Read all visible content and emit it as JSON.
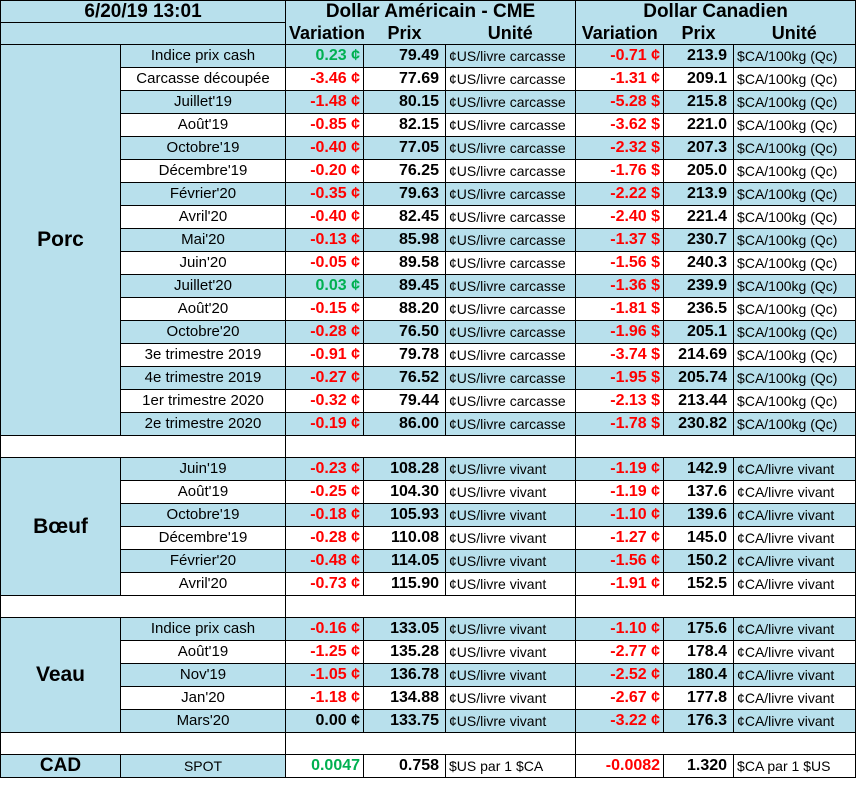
{
  "header": {
    "timestamp": "6/20/19 13:01",
    "usd_title": "Dollar Américain - CME",
    "cad_title": "Dollar Canadien",
    "col_variation": "Variation",
    "col_prix": "Prix",
    "col_unite": "Unité"
  },
  "sections": [
    {
      "category": "Porc",
      "rows": [
        {
          "label": "Indice prix cash",
          "usd_var": "0.23 ¢",
          "usd_var_sign": "pos",
          "usd_price": "79.49",
          "usd_unit": "¢US/livre carcasse",
          "cad_var": "-0.71 ¢",
          "cad_var_sign": "neg",
          "cad_price": "213.9",
          "cad_unit": "$CA/100kg (Qc)"
        },
        {
          "label": "Carcasse découpée",
          "usd_var": "-3.46 ¢",
          "usd_var_sign": "neg",
          "usd_price": "77.69",
          "usd_unit": "¢US/livre carcasse",
          "cad_var": "-1.31 ¢",
          "cad_var_sign": "neg",
          "cad_price": "209.1",
          "cad_unit": "$CA/100kg (Qc)"
        },
        {
          "label": "Juillet'19",
          "usd_var": "-1.48 ¢",
          "usd_var_sign": "neg",
          "usd_price": "80.15",
          "usd_unit": "¢US/livre carcasse",
          "cad_var": "-5.28 $",
          "cad_var_sign": "neg",
          "cad_price": "215.8",
          "cad_unit": "$CA/100kg (Qc)"
        },
        {
          "label": "Août'19",
          "usd_var": "-0.85 ¢",
          "usd_var_sign": "neg",
          "usd_price": "82.15",
          "usd_unit": "¢US/livre carcasse",
          "cad_var": "-3.62 $",
          "cad_var_sign": "neg",
          "cad_price": "221.0",
          "cad_unit": "$CA/100kg (Qc)"
        },
        {
          "label": "Octobre'19",
          "usd_var": "-0.40 ¢",
          "usd_var_sign": "neg",
          "usd_price": "77.05",
          "usd_unit": "¢US/livre carcasse",
          "cad_var": "-2.32 $",
          "cad_var_sign": "neg",
          "cad_price": "207.3",
          "cad_unit": "$CA/100kg (Qc)"
        },
        {
          "label": "Décembre'19",
          "usd_var": "-0.20 ¢",
          "usd_var_sign": "neg",
          "usd_price": "76.25",
          "usd_unit": "¢US/livre carcasse",
          "cad_var": "-1.76 $",
          "cad_var_sign": "neg",
          "cad_price": "205.0",
          "cad_unit": "$CA/100kg (Qc)"
        },
        {
          "label": "Février'20",
          "usd_var": "-0.35 ¢",
          "usd_var_sign": "neg",
          "usd_price": "79.63",
          "usd_unit": "¢US/livre carcasse",
          "cad_var": "-2.22 $",
          "cad_var_sign": "neg",
          "cad_price": "213.9",
          "cad_unit": "$CA/100kg (Qc)"
        },
        {
          "label": "Avril'20",
          "usd_var": "-0.40 ¢",
          "usd_var_sign": "neg",
          "usd_price": "82.45",
          "usd_unit": "¢US/livre carcasse",
          "cad_var": "-2.40 $",
          "cad_var_sign": "neg",
          "cad_price": "221.4",
          "cad_unit": "$CA/100kg (Qc)"
        },
        {
          "label": "Mai'20",
          "usd_var": "-0.13 ¢",
          "usd_var_sign": "neg",
          "usd_price": "85.98",
          "usd_unit": "¢US/livre carcasse",
          "cad_var": "-1.37 $",
          "cad_var_sign": "neg",
          "cad_price": "230.7",
          "cad_unit": "$CA/100kg (Qc)"
        },
        {
          "label": "Juin'20",
          "usd_var": "-0.05 ¢",
          "usd_var_sign": "neg",
          "usd_price": "89.58",
          "usd_unit": "¢US/livre carcasse",
          "cad_var": "-1.56 $",
          "cad_var_sign": "neg",
          "cad_price": "240.3",
          "cad_unit": "$CA/100kg (Qc)"
        },
        {
          "label": "Juillet'20",
          "usd_var": "0.03 ¢",
          "usd_var_sign": "pos",
          "usd_price": "89.45",
          "usd_unit": "¢US/livre carcasse",
          "cad_var": "-1.36 $",
          "cad_var_sign": "neg",
          "cad_price": "239.9",
          "cad_unit": "$CA/100kg (Qc)"
        },
        {
          "label": "Août'20",
          "usd_var": "-0.15 ¢",
          "usd_var_sign": "neg",
          "usd_price": "88.20",
          "usd_unit": "¢US/livre carcasse",
          "cad_var": "-1.81 $",
          "cad_var_sign": "neg",
          "cad_price": "236.5",
          "cad_unit": "$CA/100kg (Qc)"
        },
        {
          "label": "Octobre'20",
          "usd_var": "-0.28 ¢",
          "usd_var_sign": "neg",
          "usd_price": "76.50",
          "usd_unit": "¢US/livre carcasse",
          "cad_var": "-1.96 $",
          "cad_var_sign": "neg",
          "cad_price": "205.1",
          "cad_unit": "$CA/100kg (Qc)"
        },
        {
          "label": "3e trimestre 2019",
          "usd_var": "-0.91 ¢",
          "usd_var_sign": "neg",
          "usd_price": "79.78",
          "usd_unit": "¢US/livre carcasse",
          "cad_var": "-3.74 $",
          "cad_var_sign": "neg",
          "cad_price": "214.69",
          "cad_unit": "$CA/100kg (Qc)"
        },
        {
          "label": "4e trimestre 2019",
          "usd_var": "-0.27 ¢",
          "usd_var_sign": "neg",
          "usd_price": "76.52",
          "usd_unit": "¢US/livre carcasse",
          "cad_var": "-1.95 $",
          "cad_var_sign": "neg",
          "cad_price": "205.74",
          "cad_unit": "$CA/100kg (Qc)"
        },
        {
          "label": "1er trimestre 2020",
          "usd_var": "-0.32 ¢",
          "usd_var_sign": "neg",
          "usd_price": "79.44",
          "usd_unit": "¢US/livre carcasse",
          "cad_var": "-2.13 $",
          "cad_var_sign": "neg",
          "cad_price": "213.44",
          "cad_unit": "$CA/100kg (Qc)"
        },
        {
          "label": "2e trimestre 2020",
          "usd_var": "-0.19 ¢",
          "usd_var_sign": "neg",
          "usd_price": "86.00",
          "usd_unit": "¢US/livre carcasse",
          "cad_var": "-1.78 $",
          "cad_var_sign": "neg",
          "cad_price": "230.82",
          "cad_unit": "$CA/100kg (Qc)"
        }
      ]
    },
    {
      "category": "Bœuf",
      "rows": [
        {
          "label": "Juin'19",
          "usd_var": "-0.23 ¢",
          "usd_var_sign": "neg",
          "usd_price": "108.28",
          "usd_unit": "¢US/livre vivant",
          "cad_var": "-1.19 ¢",
          "cad_var_sign": "neg",
          "cad_price": "142.9",
          "cad_unit": "¢CA/livre vivant"
        },
        {
          "label": "Août'19",
          "usd_var": "-0.25 ¢",
          "usd_var_sign": "neg",
          "usd_price": "104.30",
          "usd_unit": "¢US/livre vivant",
          "cad_var": "-1.19 ¢",
          "cad_var_sign": "neg",
          "cad_price": "137.6",
          "cad_unit": "¢CA/livre vivant"
        },
        {
          "label": "Octobre'19",
          "usd_var": "-0.18 ¢",
          "usd_var_sign": "neg",
          "usd_price": "105.93",
          "usd_unit": "¢US/livre vivant",
          "cad_var": "-1.10 ¢",
          "cad_var_sign": "neg",
          "cad_price": "139.6",
          "cad_unit": "¢CA/livre vivant"
        },
        {
          "label": "Décembre'19",
          "usd_var": "-0.28 ¢",
          "usd_var_sign": "neg",
          "usd_price": "110.08",
          "usd_unit": "¢US/livre vivant",
          "cad_var": "-1.27 ¢",
          "cad_var_sign": "neg",
          "cad_price": "145.0",
          "cad_unit": "¢CA/livre vivant"
        },
        {
          "label": "Février'20",
          "usd_var": "-0.48 ¢",
          "usd_var_sign": "neg",
          "usd_price": "114.05",
          "usd_unit": "¢US/livre vivant",
          "cad_var": "-1.56 ¢",
          "cad_var_sign": "neg",
          "cad_price": "150.2",
          "cad_unit": "¢CA/livre vivant"
        },
        {
          "label": "Avril'20",
          "usd_var": "-0.73 ¢",
          "usd_var_sign": "neg",
          "usd_price": "115.90",
          "usd_unit": "¢US/livre vivant",
          "cad_var": "-1.91 ¢",
          "cad_var_sign": "neg",
          "cad_price": "152.5",
          "cad_unit": "¢CA/livre vivant"
        }
      ]
    },
    {
      "category": "Veau",
      "rows": [
        {
          "label": "Indice prix cash",
          "usd_var": "-0.16 ¢",
          "usd_var_sign": "neg",
          "usd_price": "133.05",
          "usd_unit": "¢US/livre vivant",
          "cad_var": "-1.10 ¢",
          "cad_var_sign": "neg",
          "cad_price": "175.6",
          "cad_unit": "¢CA/livre vivant"
        },
        {
          "label": "Août'19",
          "usd_var": "-1.25 ¢",
          "usd_var_sign": "neg",
          "usd_price": "135.28",
          "usd_unit": "¢US/livre vivant",
          "cad_var": "-2.77 ¢",
          "cad_var_sign": "neg",
          "cad_price": "178.4",
          "cad_unit": "¢CA/livre vivant"
        },
        {
          "label": "Nov'19",
          "usd_var": "-1.05 ¢",
          "usd_var_sign": "neg",
          "usd_price": "136.78",
          "usd_unit": "¢US/livre vivant",
          "cad_var": "-2.52 ¢",
          "cad_var_sign": "neg",
          "cad_price": "180.4",
          "cad_unit": "¢CA/livre vivant"
        },
        {
          "label": "Jan'20",
          "usd_var": "-1.18 ¢",
          "usd_var_sign": "neg",
          "usd_price": "134.88",
          "usd_unit": "¢US/livre vivant",
          "cad_var": "-2.67 ¢",
          "cad_var_sign": "neg",
          "cad_price": "177.8",
          "cad_unit": "¢CA/livre vivant"
        },
        {
          "label": "Mars'20",
          "usd_var": "0.00 ¢",
          "usd_var_sign": "zero",
          "usd_price": "133.75",
          "usd_unit": "¢US/livre vivant",
          "cad_var": "-3.22 ¢",
          "cad_var_sign": "neg",
          "cad_price": "176.3",
          "cad_unit": "¢CA/livre vivant"
        }
      ]
    }
  ],
  "cad_row": {
    "category": "CAD",
    "label": "SPOT",
    "usd_var": "0.0047",
    "usd_var_sign": "pos",
    "usd_price": "0.758",
    "usd_unit": "$US par 1 $CA",
    "cad_var": "-0.0082",
    "cad_var_sign": "neg",
    "cad_price": "1.320",
    "cad_unit": "$CA par 1 $US"
  },
  "colors": {
    "band": "#b8e0ec",
    "negative": "#ff0000",
    "positive": "#00b050",
    "border": "#000000"
  }
}
